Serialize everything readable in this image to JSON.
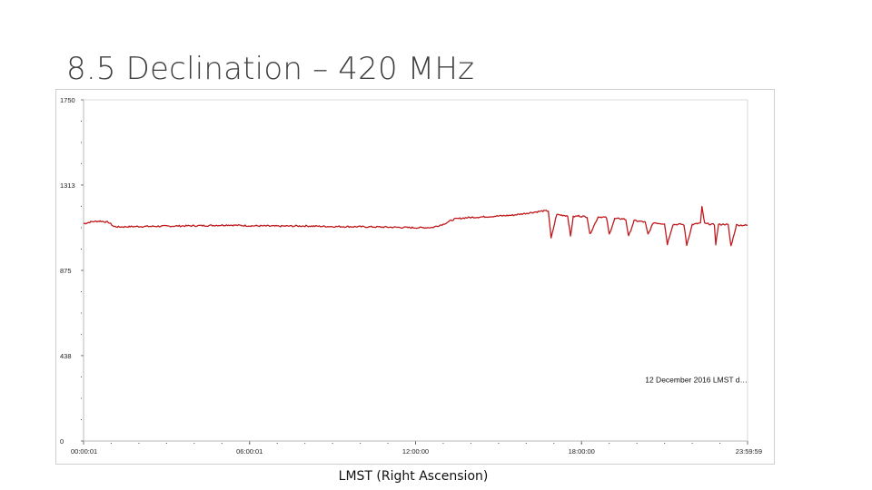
{
  "slide": {
    "title": "8.5 Declination – 420 MHz"
  },
  "chart_data": {
    "type": "line",
    "title": "",
    "xlabel": "LMST (Right Ascension)",
    "ylabel": "",
    "annotation": "12 December 2016 LMST d…",
    "x_unit": "hours LMST",
    "xlim": [
      0.0003,
      23.9997
    ],
    "ylim": [
      0,
      1750
    ],
    "y_ticks": [
      0,
      438,
      875,
      1313,
      1750
    ],
    "y_tick_labels": [
      "0",
      "438",
      "875",
      "1313",
      "1750"
    ],
    "x_ticks": [
      0.0003,
      6.0003,
      12.0,
      18.0,
      23.9997
    ],
    "x_tick_labels": [
      "00:00:01",
      "06:00:01",
      "12:00:00",
      "18:00:00",
      "23:59:59"
    ],
    "grid": false,
    "series_color": "#c0191c",
    "series": [
      {
        "x": [
          0,
          0.3,
          0.6,
          0.9,
          1.1,
          1.3,
          1.8,
          2.5,
          3.5,
          4.5,
          5.2,
          6.0,
          7.0,
          8.0,
          9.0,
          10.0,
          11.0,
          12.0,
          12.6,
          13.0,
          13.4,
          13.8,
          14.5,
          15.5,
          16.2,
          16.6,
          16.8,
          16.9,
          17.1,
          17.2,
          17.5,
          17.6,
          17.7,
          17.9,
          18.0,
          18.2,
          18.3,
          18.6,
          18.8,
          18.9,
          19.0,
          19.2,
          19.5,
          19.6,
          19.7,
          19.9,
          20.2,
          20.3,
          20.4,
          20.6,
          20.9,
          21.0,
          21.1,
          21.3,
          21.6,
          21.7,
          21.8,
          22.0,
          22.3,
          22.35,
          22.45,
          22.7,
          22.8,
          22.85,
          22.95,
          23.2,
          23.3,
          23.4,
          23.6,
          24.0
        ],
        "y": [
          1115,
          1125,
          1128,
          1122,
          1100,
          1098,
          1100,
          1101,
          1103,
          1105,
          1108,
          1104,
          1102,
          1103,
          1100,
          1099,
          1097,
          1094,
          1095,
          1112,
          1138,
          1145,
          1150,
          1158,
          1172,
          1180,
          1180,
          1040,
          1162,
          1160,
          1155,
          1050,
          1150,
          1155,
          1152,
          1150,
          1060,
          1150,
          1148,
          1145,
          1060,
          1140,
          1140,
          1135,
          1050,
          1130,
          1125,
          1122,
          1060,
          1120,
          1115,
          1115,
          1010,
          1110,
          1112,
          1108,
          1005,
          1110,
          1118,
          1200,
          1115,
          1112,
          1108,
          1010,
          1110,
          1112,
          1108,
          1000,
          1108,
          1106
        ]
      }
    ]
  }
}
